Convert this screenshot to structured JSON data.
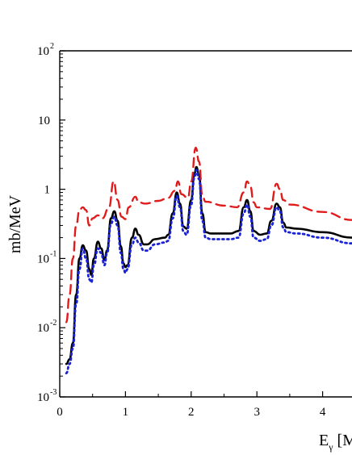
{
  "chart_data": {
    "type": "line",
    "title": "",
    "xlabel": {
      "base": "E",
      "sub": "γ",
      "rest": " [M"
    },
    "ylabel": "mb/MeV",
    "xlim": [
      0,
      4.45
    ],
    "ylim": [
      0.001,
      100
    ],
    "yscale": "log",
    "xticks": [
      {
        "value": 0,
        "label": "0"
      },
      {
        "value": 1,
        "label": "1"
      },
      {
        "value": 2,
        "label": "2"
      },
      {
        "value": 3,
        "label": "3"
      },
      {
        "value": 4,
        "label": "4"
      }
    ],
    "yticks": [
      {
        "value": 100,
        "base": "10",
        "exp": "2"
      },
      {
        "value": 10,
        "base": "10",
        "exp": ""
      },
      {
        "value": 1,
        "base": "1",
        "exp": ""
      },
      {
        "value": 0.1,
        "base": "10",
        "exp": "-1"
      },
      {
        "value": 0.01,
        "base": "10",
        "exp": "-2"
      },
      {
        "value": 0.001,
        "base": "10",
        "exp": "-3"
      }
    ],
    "grid": false,
    "series": [
      {
        "style": "solid",
        "color": "#000000",
        "points": [
          [
            0.1,
            0.003
          ],
          [
            0.15,
            0.0035
          ],
          [
            0.2,
            0.006
          ],
          [
            0.25,
            0.03
          ],
          [
            0.3,
            0.1
          ],
          [
            0.35,
            0.155
          ],
          [
            0.4,
            0.13
          ],
          [
            0.45,
            0.07
          ],
          [
            0.48,
            0.058
          ],
          [
            0.52,
            0.1
          ],
          [
            0.58,
            0.175
          ],
          [
            0.63,
            0.14
          ],
          [
            0.68,
            0.095
          ],
          [
            0.72,
            0.13
          ],
          [
            0.78,
            0.38
          ],
          [
            0.83,
            0.48
          ],
          [
            0.88,
            0.35
          ],
          [
            0.93,
            0.15
          ],
          [
            0.97,
            0.085
          ],
          [
            1.0,
            0.075
          ],
          [
            1.03,
            0.08
          ],
          [
            1.1,
            0.2
          ],
          [
            1.15,
            0.27
          ],
          [
            1.2,
            0.22
          ],
          [
            1.28,
            0.16
          ],
          [
            1.33,
            0.16
          ],
          [
            1.45,
            0.19
          ],
          [
            1.6,
            0.2
          ],
          [
            1.65,
            0.22
          ],
          [
            1.72,
            0.45
          ],
          [
            1.78,
            0.9
          ],
          [
            1.83,
            0.62
          ],
          [
            1.88,
            0.29
          ],
          [
            1.93,
            0.27
          ],
          [
            2.0,
            0.7
          ],
          [
            2.05,
            1.7
          ],
          [
            2.08,
            2.1
          ],
          [
            2.12,
            1.6
          ],
          [
            2.17,
            0.45
          ],
          [
            2.22,
            0.24
          ],
          [
            2.3,
            0.23
          ],
          [
            2.6,
            0.23
          ],
          [
            2.72,
            0.25
          ],
          [
            2.8,
            0.55
          ],
          [
            2.85,
            0.7
          ],
          [
            2.9,
            0.48
          ],
          [
            2.95,
            0.25
          ],
          [
            3.05,
            0.22
          ],
          [
            3.15,
            0.23
          ],
          [
            3.22,
            0.35
          ],
          [
            3.3,
            0.62
          ],
          [
            3.35,
            0.55
          ],
          [
            3.4,
            0.33
          ],
          [
            3.45,
            0.28
          ],
          [
            3.6,
            0.27
          ],
          [
            4.0,
            0.24
          ],
          [
            4.45,
            0.2
          ]
        ]
      },
      {
        "style": "dashed",
        "color": "#e01b1b",
        "points": [
          [
            0.1,
            0.012
          ],
          [
            0.15,
            0.03
          ],
          [
            0.2,
            0.1
          ],
          [
            0.25,
            0.3
          ],
          [
            0.3,
            0.5
          ],
          [
            0.35,
            0.55
          ],
          [
            0.4,
            0.5
          ],
          [
            0.45,
            0.3
          ],
          [
            0.5,
            0.38
          ],
          [
            0.58,
            0.42
          ],
          [
            0.65,
            0.38
          ],
          [
            0.75,
            0.55
          ],
          [
            0.82,
            1.3
          ],
          [
            0.88,
            0.7
          ],
          [
            0.94,
            0.4
          ],
          [
            1.0,
            0.37
          ],
          [
            1.05,
            0.55
          ],
          [
            1.15,
            0.78
          ],
          [
            1.2,
            0.65
          ],
          [
            1.3,
            0.62
          ],
          [
            1.5,
            0.68
          ],
          [
            1.65,
            0.75
          ],
          [
            1.75,
            0.95
          ],
          [
            1.8,
            1.3
          ],
          [
            1.85,
            0.85
          ],
          [
            1.95,
            0.75
          ],
          [
            2.0,
            1.3
          ],
          [
            2.07,
            4.0
          ],
          [
            2.12,
            2.5
          ],
          [
            2.17,
            0.8
          ],
          [
            2.22,
            0.66
          ],
          [
            2.5,
            0.58
          ],
          [
            2.7,
            0.55
          ],
          [
            2.8,
            0.9
          ],
          [
            2.85,
            1.3
          ],
          [
            2.9,
            1.1
          ],
          [
            2.95,
            0.65
          ],
          [
            3.0,
            0.55
          ],
          [
            3.2,
            0.52
          ],
          [
            3.3,
            1.2
          ],
          [
            3.35,
            1.0
          ],
          [
            3.4,
            0.7
          ],
          [
            3.5,
            0.6
          ],
          [
            4.0,
            0.47
          ],
          [
            4.45,
            0.36
          ]
        ]
      },
      {
        "style": "dotted",
        "color": "#1a22d6",
        "points": [
          [
            0.1,
            0.0022
          ],
          [
            0.15,
            0.003
          ],
          [
            0.2,
            0.005
          ],
          [
            0.25,
            0.022
          ],
          [
            0.3,
            0.07
          ],
          [
            0.35,
            0.14
          ],
          [
            0.4,
            0.1
          ],
          [
            0.45,
            0.05
          ],
          [
            0.48,
            0.045
          ],
          [
            0.52,
            0.08
          ],
          [
            0.58,
            0.14
          ],
          [
            0.63,
            0.12
          ],
          [
            0.68,
            0.08
          ],
          [
            0.72,
            0.12
          ],
          [
            0.78,
            0.32
          ],
          [
            0.83,
            0.4
          ],
          [
            0.88,
            0.3
          ],
          [
            0.93,
            0.12
          ],
          [
            0.97,
            0.07
          ],
          [
            1.0,
            0.062
          ],
          [
            1.03,
            0.07
          ],
          [
            1.1,
            0.16
          ],
          [
            1.15,
            0.2
          ],
          [
            1.2,
            0.17
          ],
          [
            1.28,
            0.13
          ],
          [
            1.33,
            0.13
          ],
          [
            1.45,
            0.16
          ],
          [
            1.6,
            0.17
          ],
          [
            1.65,
            0.18
          ],
          [
            1.72,
            0.38
          ],
          [
            1.78,
            0.8
          ],
          [
            1.83,
            0.55
          ],
          [
            1.88,
            0.25
          ],
          [
            1.93,
            0.22
          ],
          [
            2.0,
            0.6
          ],
          [
            2.05,
            1.5
          ],
          [
            2.08,
            1.9
          ],
          [
            2.12,
            1.4
          ],
          [
            2.17,
            0.35
          ],
          [
            2.22,
            0.2
          ],
          [
            2.3,
            0.19
          ],
          [
            2.6,
            0.19
          ],
          [
            2.72,
            0.2
          ],
          [
            2.8,
            0.45
          ],
          [
            2.85,
            0.6
          ],
          [
            2.9,
            0.4
          ],
          [
            2.95,
            0.2
          ],
          [
            3.05,
            0.18
          ],
          [
            3.15,
            0.19
          ],
          [
            3.22,
            0.3
          ],
          [
            3.3,
            0.55
          ],
          [
            3.35,
            0.48
          ],
          [
            3.4,
            0.28
          ],
          [
            3.45,
            0.24
          ],
          [
            3.6,
            0.23
          ],
          [
            4.0,
            0.2
          ],
          [
            4.45,
            0.165
          ]
        ]
      }
    ]
  }
}
